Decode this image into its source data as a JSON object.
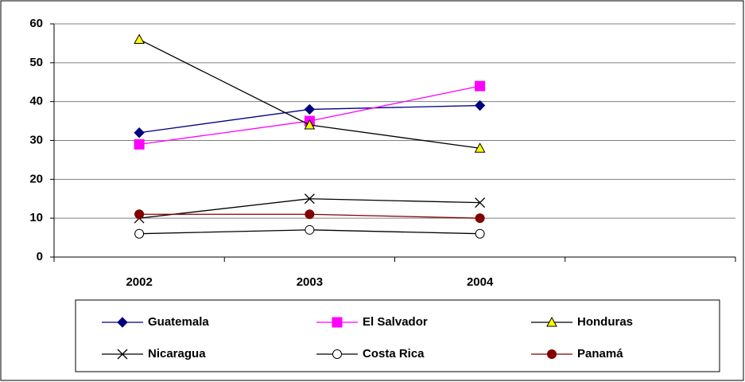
{
  "chart_data": {
    "type": "line",
    "categories": [
      "2002",
      "2003",
      "2004",
      null
    ],
    "series": [
      {
        "name": "Guatemala",
        "color": "#000080",
        "marker": "diamond",
        "marker_color": "#000080",
        "values": [
          32,
          38,
          39,
          null
        ]
      },
      {
        "name": "El Salvador",
        "color": "#ff00ff",
        "marker": "square",
        "marker_color": "#ff00ff",
        "values": [
          29,
          35,
          44,
          null
        ]
      },
      {
        "name": "Honduras",
        "color": "#000000",
        "marker": "triangle",
        "marker_color": "#ffff00",
        "values": [
          56,
          34,
          28,
          null
        ]
      },
      {
        "name": "Nicaragua",
        "color": "#000000",
        "marker": "x",
        "marker_color": "#000000",
        "values": [
          10,
          15,
          14,
          null
        ]
      },
      {
        "name": "Costa Rica",
        "color": "#000000",
        "marker": "circle-open",
        "marker_color": "#ffffff",
        "values": [
          6,
          7,
          6,
          null
        ]
      },
      {
        "name": "Panamá",
        "color": "#800000",
        "marker": "circle",
        "marker_color": "#800000",
        "values": [
          11,
          11,
          10,
          null
        ]
      }
    ],
    "ylim": [
      0,
      60
    ],
    "yticks": [
      0,
      10,
      20,
      30,
      40,
      50,
      60
    ],
    "grid": true,
    "legend": "bottom"
  }
}
